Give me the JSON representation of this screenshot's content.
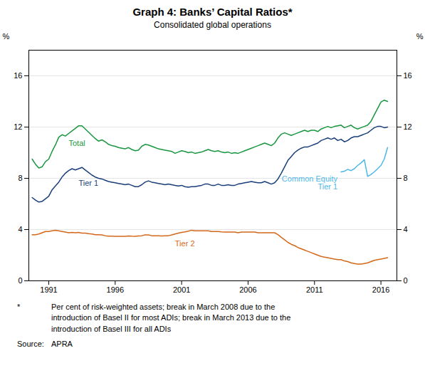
{
  "chart_data": {
    "type": "line",
    "title": "Graph 4: Banks’ Capital Ratios*",
    "subtitle": "Consolidated global operations",
    "ylabel": "%",
    "y2label": "%",
    "footnote_marker": "*",
    "footnote": "Per cent of risk-weighted assets; break in March 2008 due to the\nintroduction of Basel II for most ADIs; break in March 2013 due to the\nintroduction of Basel III for all ADIs",
    "source_label": "Source:",
    "source": "APRA",
    "xlim": [
      1989.5,
      2017.2
    ],
    "xticks": [
      1991,
      1996,
      2001,
      2006,
      2011,
      2016
    ],
    "ylim": [
      0,
      18
    ],
    "yticks": [
      0,
      4,
      8,
      12,
      16
    ],
    "y2lim": [
      0,
      18
    ],
    "y2ticks": [
      0,
      4,
      8,
      12,
      16
    ],
    "grid": "y",
    "x": [
      1989.75,
      1990.0,
      1990.25,
      1990.5,
      1990.75,
      1991.0,
      1991.25,
      1991.5,
      1991.75,
      1992.0,
      1992.25,
      1992.5,
      1992.75,
      1993.0,
      1993.25,
      1993.5,
      1993.75,
      1994.0,
      1994.25,
      1994.5,
      1994.75,
      1995.0,
      1995.25,
      1995.5,
      1995.75,
      1996.0,
      1996.25,
      1996.5,
      1996.75,
      1997.0,
      1997.25,
      1997.5,
      1997.75,
      1998.0,
      1998.25,
      1998.5,
      1998.75,
      1999.0,
      1999.25,
      1999.5,
      1999.75,
      2000.0,
      2000.25,
      2000.5,
      2000.75,
      2001.0,
      2001.25,
      2001.5,
      2001.75,
      2002.0,
      2002.25,
      2002.5,
      2002.75,
      2003.0,
      2003.25,
      2003.5,
      2003.75,
      2004.0,
      2004.25,
      2004.5,
      2004.75,
      2005.0,
      2005.25,
      2005.5,
      2005.75,
      2006.0,
      2006.25,
      2006.5,
      2006.75,
      2007.0,
      2007.25,
      2007.5,
      2007.75,
      2008.0,
      2008.25,
      2008.5,
      2008.75,
      2009.0,
      2009.25,
      2009.5,
      2009.75,
      2010.0,
      2010.25,
      2010.5,
      2010.75,
      2011.0,
      2011.25,
      2011.5,
      2011.75,
      2012.0,
      2012.25,
      2012.5,
      2012.75,
      2013.0,
      2013.25,
      2013.5,
      2013.75,
      2014.0,
      2014.25,
      2014.5,
      2014.75,
      2015.0,
      2015.25,
      2015.5,
      2015.75,
      2016.0,
      2016.25,
      2016.5
    ],
    "series": [
      {
        "name": "Total",
        "color": "#1a9641",
        "values": [
          9.5,
          9.1,
          8.8,
          8.9,
          9.3,
          9.5,
          10.1,
          10.6,
          11.2,
          11.4,
          11.3,
          11.5,
          11.7,
          11.9,
          12.1,
          12.1,
          11.85,
          11.6,
          11.35,
          11.1,
          10.9,
          11.0,
          10.85,
          10.65,
          10.55,
          10.5,
          10.4,
          10.35,
          10.3,
          10.4,
          10.25,
          10.15,
          10.2,
          10.5,
          10.65,
          10.6,
          10.5,
          10.4,
          10.3,
          10.25,
          10.2,
          10.15,
          10.1,
          9.95,
          10.05,
          10.15,
          10.1,
          10.0,
          10.05,
          9.95,
          10.0,
          10.05,
          10.15,
          10.25,
          10.15,
          10.1,
          10.15,
          10.05,
          10.0,
          10.05,
          9.95,
          10.0,
          9.95,
          10.05,
          10.15,
          10.25,
          10.35,
          10.45,
          10.55,
          10.65,
          10.75,
          10.65,
          10.55,
          10.75,
          11.15,
          11.45,
          11.55,
          11.45,
          11.35,
          11.45,
          11.55,
          11.65,
          11.75,
          11.65,
          11.75,
          11.75,
          11.65,
          11.85,
          11.95,
          12.05,
          11.95,
          12.05,
          12.1,
          12.15,
          11.95,
          12.05,
          12.15,
          11.95,
          11.85,
          11.95,
          12.05,
          12.15,
          12.45,
          12.95,
          13.45,
          13.95,
          14.1,
          14.0
        ]
      },
      {
        "name": "Tier 1",
        "color": "#1a3f7a",
        "values": [
          6.5,
          6.3,
          6.15,
          6.2,
          6.4,
          6.6,
          7.1,
          7.4,
          7.7,
          8.1,
          8.4,
          8.6,
          8.75,
          8.65,
          8.75,
          8.85,
          8.65,
          8.45,
          8.25,
          8.1,
          8.0,
          7.95,
          7.85,
          7.75,
          7.7,
          7.65,
          7.6,
          7.55,
          7.5,
          7.55,
          7.45,
          7.35,
          7.35,
          7.5,
          7.7,
          7.8,
          7.7,
          7.65,
          7.6,
          7.55,
          7.5,
          7.55,
          7.5,
          7.45,
          7.4,
          7.45,
          7.35,
          7.3,
          7.35,
          7.35,
          7.4,
          7.45,
          7.55,
          7.55,
          7.45,
          7.45,
          7.55,
          7.45,
          7.45,
          7.5,
          7.45,
          7.45,
          7.55,
          7.6,
          7.65,
          7.7,
          7.75,
          7.7,
          7.65,
          7.65,
          7.75,
          7.65,
          7.55,
          7.65,
          7.95,
          8.4,
          8.9,
          9.4,
          9.7,
          10.0,
          10.2,
          10.35,
          10.45,
          10.45,
          10.55,
          10.65,
          10.75,
          10.95,
          11.05,
          11.15,
          11.05,
          11.15,
          10.95,
          11.05,
          10.85,
          10.95,
          11.15,
          11.25,
          11.25,
          11.35,
          11.45,
          11.55,
          11.75,
          11.95,
          12.05,
          12.05,
          11.95,
          12.0
        ]
      },
      {
        "name": "Tier 2",
        "color": "#d4681a",
        "values": [
          3.6,
          3.6,
          3.65,
          3.75,
          3.85,
          3.85,
          3.9,
          3.95,
          3.9,
          3.85,
          3.8,
          3.75,
          3.78,
          3.75,
          3.78,
          3.72,
          3.72,
          3.68,
          3.65,
          3.6,
          3.6,
          3.58,
          3.52,
          3.48,
          3.48,
          3.47,
          3.47,
          3.47,
          3.47,
          3.5,
          3.48,
          3.47,
          3.5,
          3.52,
          3.58,
          3.58,
          3.52,
          3.52,
          3.52,
          3.5,
          3.52,
          3.52,
          3.58,
          3.65,
          3.72,
          3.78,
          3.82,
          3.88,
          3.95,
          3.9,
          3.9,
          3.9,
          3.9,
          3.9,
          3.85,
          3.85,
          3.85,
          3.82,
          3.8,
          3.8,
          3.8,
          3.8,
          3.75,
          3.8,
          3.8,
          3.8,
          3.8,
          3.8,
          3.75,
          3.75,
          3.75,
          3.75,
          3.75,
          3.75,
          3.6,
          3.4,
          3.2,
          3.0,
          2.85,
          2.75,
          2.6,
          2.5,
          2.4,
          2.3,
          2.2,
          2.1,
          2.0,
          1.9,
          1.85,
          1.8,
          1.75,
          1.7,
          1.65,
          1.65,
          1.55,
          1.5,
          1.4,
          1.35,
          1.3,
          1.3,
          1.35,
          1.4,
          1.5,
          1.6,
          1.65,
          1.7,
          1.75,
          1.8
        ]
      },
      {
        "name": "Common Equity\nTier 1",
        "color": "#4db8e8",
        "values": [
          null,
          null,
          null,
          null,
          null,
          null,
          null,
          null,
          null,
          null,
          null,
          null,
          null,
          null,
          null,
          null,
          null,
          null,
          null,
          null,
          null,
          null,
          null,
          null,
          null,
          null,
          null,
          null,
          null,
          null,
          null,
          null,
          null,
          null,
          null,
          null,
          null,
          null,
          null,
          null,
          null,
          null,
          null,
          null,
          null,
          null,
          null,
          null,
          null,
          null,
          null,
          null,
          null,
          null,
          null,
          null,
          null,
          null,
          null,
          null,
          null,
          null,
          null,
          null,
          null,
          null,
          null,
          null,
          null,
          null,
          null,
          null,
          null,
          null,
          null,
          null,
          null,
          null,
          null,
          null,
          null,
          null,
          null,
          null,
          null,
          null,
          null,
          null,
          null,
          null,
          null,
          null,
          null,
          8.5,
          8.55,
          8.7,
          8.6,
          8.75,
          9.0,
          9.2,
          9.45,
          8.15,
          8.3,
          8.5,
          8.75,
          9.0,
          9.5,
          10.4
        ]
      }
    ]
  }
}
